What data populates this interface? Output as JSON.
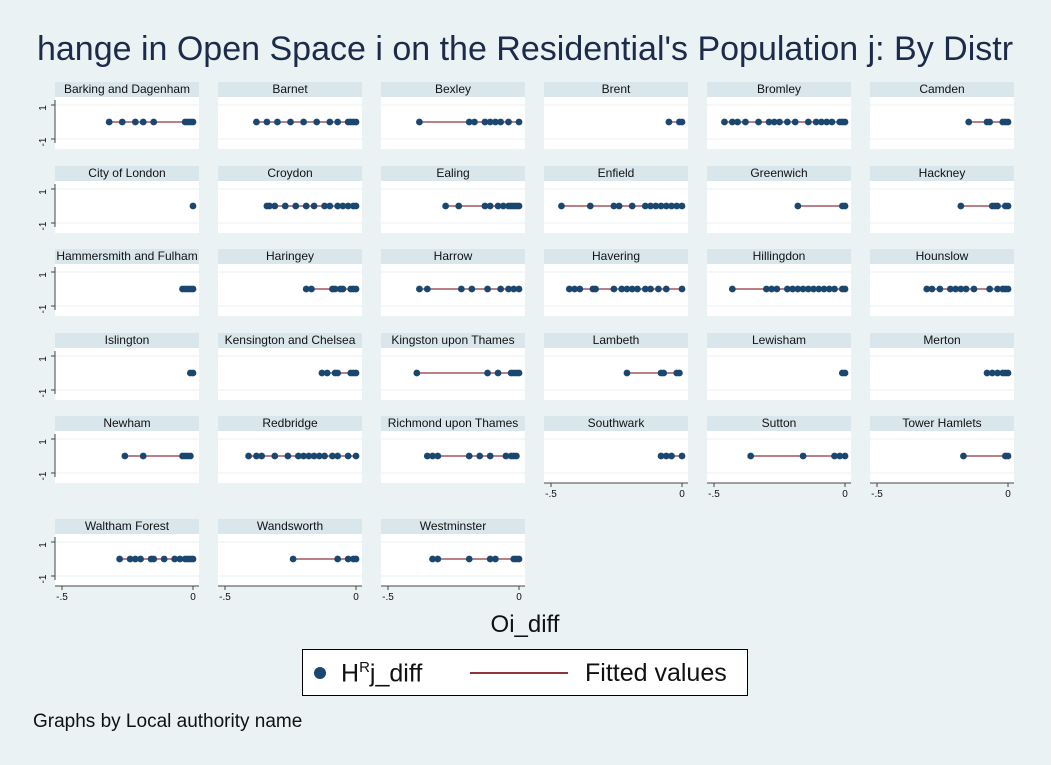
{
  "chart_data": {
    "type": "scatter",
    "title": "hange in Open Space i on the Residential's Population j: By Distr",
    "xlabel": "Oi_diff",
    "note": "Graphs by Local authority name",
    "xlim": [
      -0.5,
      0
    ],
    "x_ticks": [
      "-.5",
      "0"
    ],
    "y_ticks": [
      "1",
      "-1"
    ],
    "legend": {
      "position": "bottom",
      "series_label": "j_diff",
      "series_prefix": "H",
      "series_sup": "R",
      "fitted_label": "Fitted values"
    },
    "colors": {
      "marker": "#1a476f",
      "fit": "#90353b",
      "background": "#eaf2f3",
      "strip": "#d9e6eb"
    },
    "panels": [
      {
        "name": "Barking and Dagenham",
        "x": [
          -0.32,
          -0.27,
          -0.22,
          -0.19,
          -0.15,
          -0.03,
          -0.02,
          -0.01,
          0
        ]
      },
      {
        "name": "Barnet",
        "x": [
          -0.38,
          -0.34,
          -0.3,
          -0.25,
          -0.2,
          -0.15,
          -0.1,
          -0.07,
          -0.03,
          -0.02,
          -0.01,
          0
        ]
      },
      {
        "name": "Bexley",
        "x": [
          -0.38,
          -0.19,
          -0.17,
          -0.13,
          -0.11,
          -0.09,
          -0.07,
          -0.04,
          0
        ]
      },
      {
        "name": "Brent",
        "x": [
          -0.05,
          -0.01,
          0
        ]
      },
      {
        "name": "Bromley",
        "x": [
          -0.46,
          -0.43,
          -0.41,
          -0.38,
          -0.33,
          -0.29,
          -0.27,
          -0.25,
          -0.22,
          -0.19,
          -0.14,
          -0.11,
          -0.09,
          -0.07,
          -0.05,
          -0.02,
          -0.01,
          0
        ]
      },
      {
        "name": "Camden",
        "x": [
          -0.15,
          -0.08,
          -0.07,
          -0.02,
          -0.01,
          0
        ]
      },
      {
        "name": "City of London",
        "x": [
          0
        ]
      },
      {
        "name": "Croydon",
        "x": [
          -0.34,
          -0.33,
          -0.31,
          -0.27,
          -0.23,
          -0.19,
          -0.16,
          -0.12,
          -0.1,
          -0.07,
          -0.05,
          -0.03,
          -0.01,
          0
        ]
      },
      {
        "name": "Ealing",
        "x": [
          -0.28,
          -0.23,
          -0.13,
          -0.11,
          -0.08,
          -0.06,
          -0.04,
          -0.03,
          -0.02,
          -0.01,
          0
        ]
      },
      {
        "name": "Enfield",
        "x": [
          -0.46,
          -0.35,
          -0.26,
          -0.24,
          -0.19,
          -0.14,
          -0.12,
          -0.1,
          -0.08,
          -0.06,
          -0.04,
          -0.02,
          0
        ]
      },
      {
        "name": "Greenwich",
        "x": [
          -0.18,
          -0.01,
          0
        ]
      },
      {
        "name": "Hackney",
        "x": [
          -0.18,
          -0.06,
          -0.05,
          -0.04,
          -0.01,
          0
        ]
      },
      {
        "name": "Hammersmith and Fulham",
        "x": [
          -0.04,
          -0.03,
          -0.02,
          -0.01,
          0
        ]
      },
      {
        "name": "Haringey",
        "x": [
          -0.19,
          -0.17,
          -0.09,
          -0.08,
          -0.06,
          -0.05,
          -0.02,
          -0.01,
          0
        ]
      },
      {
        "name": "Harrow",
        "x": [
          -0.38,
          -0.35,
          -0.22,
          -0.18,
          -0.12,
          -0.07,
          -0.04,
          -0.02,
          0
        ]
      },
      {
        "name": "Havering",
        "x": [
          -0.43,
          -0.41,
          -0.39,
          -0.34,
          -0.33,
          -0.26,
          -0.23,
          -0.21,
          -0.19,
          -0.17,
          -0.14,
          -0.12,
          -0.09,
          -0.06,
          0
        ]
      },
      {
        "name": "Hillingdon",
        "x": [
          -0.43,
          -0.3,
          -0.28,
          -0.26,
          -0.22,
          -0.2,
          -0.18,
          -0.16,
          -0.14,
          -0.12,
          -0.1,
          -0.08,
          -0.06,
          -0.04,
          -0.01,
          0
        ]
      },
      {
        "name": "Hounslow",
        "x": [
          -0.31,
          -0.29,
          -0.26,
          -0.22,
          -0.2,
          -0.18,
          -0.16,
          -0.13,
          -0.07,
          -0.04,
          -0.02,
          -0.01,
          0
        ]
      },
      {
        "name": "Islington",
        "x": [
          -0.01,
          0
        ]
      },
      {
        "name": "Kensington and Chelsea",
        "x": [
          -0.13,
          -0.11,
          -0.08,
          -0.07,
          -0.02,
          -0.01,
          0
        ]
      },
      {
        "name": "Kingston upon Thames",
        "x": [
          -0.39,
          -0.12,
          -0.08,
          -0.03,
          -0.02,
          -0.01,
          0
        ]
      },
      {
        "name": "Lambeth",
        "x": [
          -0.21,
          -0.08,
          -0.07,
          -0.02,
          -0.01
        ]
      },
      {
        "name": "Lewisham",
        "x": [
          -0.01,
          0
        ]
      },
      {
        "name": "Merton",
        "x": [
          -0.08,
          -0.06,
          -0.04,
          -0.02,
          -0.01,
          0
        ]
      },
      {
        "name": "Newham",
        "x": [
          -0.26,
          -0.19,
          -0.04,
          -0.03,
          -0.02,
          -0.01
        ]
      },
      {
        "name": "Redbridge",
        "x": [
          -0.41,
          -0.38,
          -0.36,
          -0.31,
          -0.26,
          -0.22,
          -0.2,
          -0.18,
          -0.16,
          -0.14,
          -0.12,
          -0.09,
          -0.07,
          -0.03,
          0
        ]
      },
      {
        "name": "Richmond upon Thames",
        "x": [
          -0.35,
          -0.33,
          -0.31,
          -0.19,
          -0.15,
          -0.11,
          -0.05,
          -0.03,
          -0.02,
          -0.01
        ]
      },
      {
        "name": "Southwark",
        "x": [
          -0.08,
          -0.06,
          -0.04,
          0
        ]
      },
      {
        "name": "Sutton",
        "x": [
          -0.36,
          -0.16,
          -0.04,
          -0.02,
          0
        ]
      },
      {
        "name": "Tower Hamlets",
        "x": [
          -0.17,
          -0.01,
          0
        ]
      },
      {
        "name": "Waltham Forest",
        "x": [
          -0.28,
          -0.24,
          -0.22,
          -0.2,
          -0.16,
          -0.15,
          -0.11,
          -0.07,
          -0.05,
          -0.03,
          -0.02,
          -0.01,
          0
        ]
      },
      {
        "name": "Wandsworth",
        "x": [
          -0.24,
          -0.07,
          -0.03,
          -0.01,
          0
        ]
      },
      {
        "name": "Westminster",
        "x": [
          -0.33,
          -0.31,
          -0.19,
          -0.11,
          -0.09,
          -0.02,
          -0.01,
          0
        ]
      }
    ]
  }
}
